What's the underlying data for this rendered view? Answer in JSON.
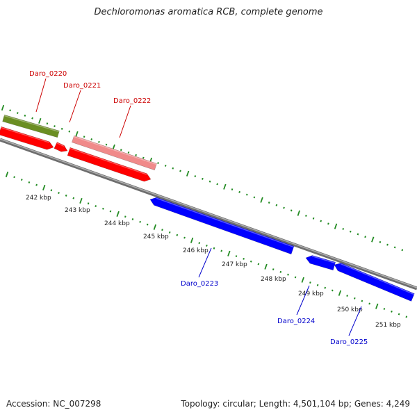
{
  "title": "Dechloromonas aromatica RCB, complete genome",
  "footer": {
    "accession": "Accession: NC_007298",
    "summary": "Topology: circular; Length: 4,501,104 bp; Genes: 4,249"
  },
  "colors": {
    "forward_gene": "#ff0000",
    "forward_gene_light": "#f08a8a",
    "rna_gene": "#6b8e23",
    "reverse_gene": "#0000ff",
    "axis": "#888888",
    "tick": "#228b22",
    "forward_label": "#cc0000",
    "reverse_label": "#0000cc"
  },
  "scale_labels": [
    "242 kbp",
    "243 kbp",
    "244 kbp",
    "245 kbp",
    "246 kbp",
    "247 kbp",
    "248 kbp",
    "249 kbp",
    "250 kbp",
    "251 kbp"
  ],
  "gene_labels": [
    {
      "text": "Daro_0220",
      "strand": "forward"
    },
    {
      "text": "Daro_0221",
      "strand": "forward"
    },
    {
      "text": "Daro_0222",
      "strand": "forward"
    },
    {
      "text": "Daro_0223",
      "strand": "reverse"
    },
    {
      "text": "Daro_0224",
      "strand": "reverse"
    },
    {
      "text": "Daro_0225",
      "strand": "reverse"
    }
  ]
}
